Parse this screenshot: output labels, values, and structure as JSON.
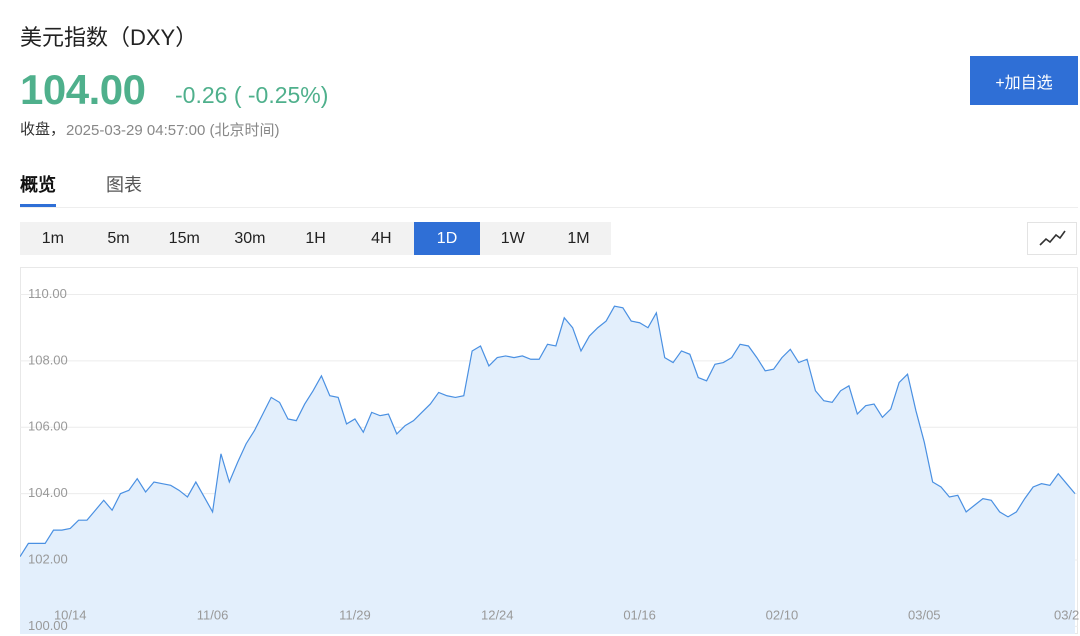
{
  "header": {
    "title": "美元指数（DXY）",
    "price": "104.00",
    "change": "-0.26 ( -0.25%)",
    "status": "收盘，",
    "timestamp": "2025-03-29 04:57:00 (北京时间)",
    "watch_button": "+加自选"
  },
  "tabs": [
    "概览",
    "图表"
  ],
  "active_tab": 0,
  "timeframes": [
    "1m",
    "5m",
    "15m",
    "30m",
    "1H",
    "4H",
    "1D",
    "1W",
    "1M"
  ],
  "active_timeframe": 6,
  "chart_data": {
    "type": "area",
    "color": "#4a90e2",
    "fill_color": "#e3effc",
    "grid": true,
    "categories": [
      null,
      null,
      null,
      null,
      null,
      null,
      "10/14",
      null,
      null,
      null,
      null,
      null,
      null,
      null,
      null,
      null,
      null,
      null,
      null,
      null,
      null,
      null,
      null,
      "11/06",
      null,
      null,
      null,
      null,
      null,
      null,
      null,
      null,
      null,
      null,
      null,
      null,
      null,
      null,
      null,
      null,
      "11/29",
      null,
      null,
      null,
      null,
      null,
      null,
      null,
      null,
      null,
      null,
      null,
      null,
      null,
      null,
      null,
      null,
      "12/24",
      null,
      null,
      null,
      null,
      null,
      null,
      null,
      null,
      null,
      null,
      null,
      null,
      null,
      null,
      null,
      null,
      "01/16",
      null,
      null,
      null,
      null,
      null,
      null,
      null,
      null,
      null,
      null,
      null,
      null,
      null,
      null,
      null,
      null,
      "02/10",
      null,
      null,
      null,
      null,
      null,
      null,
      null,
      null,
      null,
      null,
      null,
      null,
      null,
      null,
      null,
      null,
      "03/05",
      null,
      null,
      null,
      null,
      null,
      null,
      null,
      null,
      null,
      null,
      null,
      null,
      null,
      null,
      null,
      null,
      "03/2",
      null
    ],
    "values": [
      102.1,
      102.5,
      102.5,
      102.5,
      102.9,
      102.9,
      102.95,
      103.2,
      103.2,
      103.5,
      103.8,
      103.5,
      104.0,
      104.1,
      104.45,
      104.05,
      104.35,
      104.3,
      104.25,
      104.1,
      103.9,
      104.35,
      103.9,
      103.45,
      105.2,
      104.35,
      104.95,
      105.5,
      105.9,
      106.4,
      106.9,
      106.75,
      106.25,
      106.2,
      106.7,
      107.1,
      107.55,
      106.95,
      106.9,
      106.1,
      106.25,
      105.85,
      106.45,
      106.35,
      106.4,
      105.8,
      106.05,
      106.2,
      106.45,
      106.7,
      107.05,
      106.95,
      106.9,
      106.95,
      108.3,
      108.45,
      107.85,
      108.1,
      108.15,
      108.1,
      108.15,
      108.05,
      108.05,
      108.5,
      108.45,
      109.3,
      109.0,
      108.3,
      108.75,
      109.0,
      109.2,
      109.65,
      109.6,
      109.2,
      109.15,
      109.0,
      109.45,
      108.1,
      107.95,
      108.3,
      108.2,
      107.5,
      107.4,
      107.9,
      107.95,
      108.1,
      108.5,
      108.45,
      108.1,
      107.7,
      107.75,
      108.1,
      108.35,
      107.95,
      108.05,
      107.1,
      106.8,
      106.75,
      107.1,
      107.25,
      106.4,
      106.65,
      106.7,
      106.3,
      106.55,
      107.35,
      107.6,
      106.5,
      105.55,
      104.35,
      104.2,
      103.9,
      103.95,
      103.45,
      103.65,
      103.85,
      103.8,
      103.45,
      103.3,
      103.45,
      103.85,
      104.2,
      104.3,
      104.25,
      104.6,
      104.3,
      104.0
    ],
    "ylim": [
      99.8,
      110.8
    ],
    "yticks": [
      {
        "value": 100,
        "label": "100.00"
      },
      {
        "value": 102,
        "label": "102.00"
      },
      {
        "value": 104,
        "label": "104.00"
      },
      {
        "value": 106,
        "label": "106.00"
      },
      {
        "value": 108,
        "label": "108.00"
      },
      {
        "value": 110,
        "label": "110.00"
      }
    ]
  }
}
